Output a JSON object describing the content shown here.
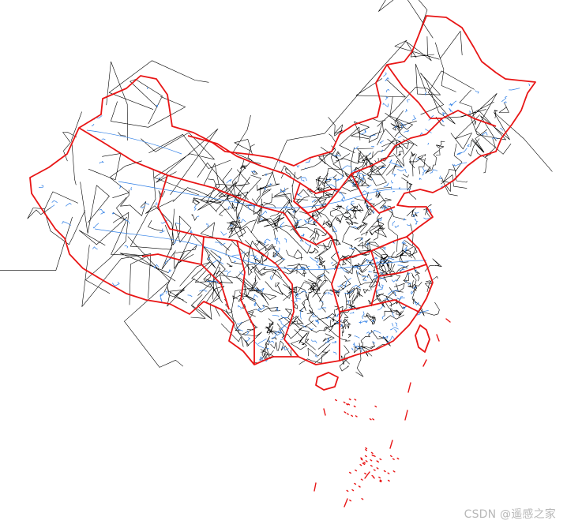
{
  "map": {
    "layers": [
      {
        "name": "province-boundaries",
        "color": "#e81515"
      },
      {
        "name": "county-boundaries",
        "color": "#000000"
      },
      {
        "name": "river-network",
        "color": "#2f7fe6"
      }
    ]
  },
  "watermark": {
    "text": "CSDN @遥感之家"
  }
}
